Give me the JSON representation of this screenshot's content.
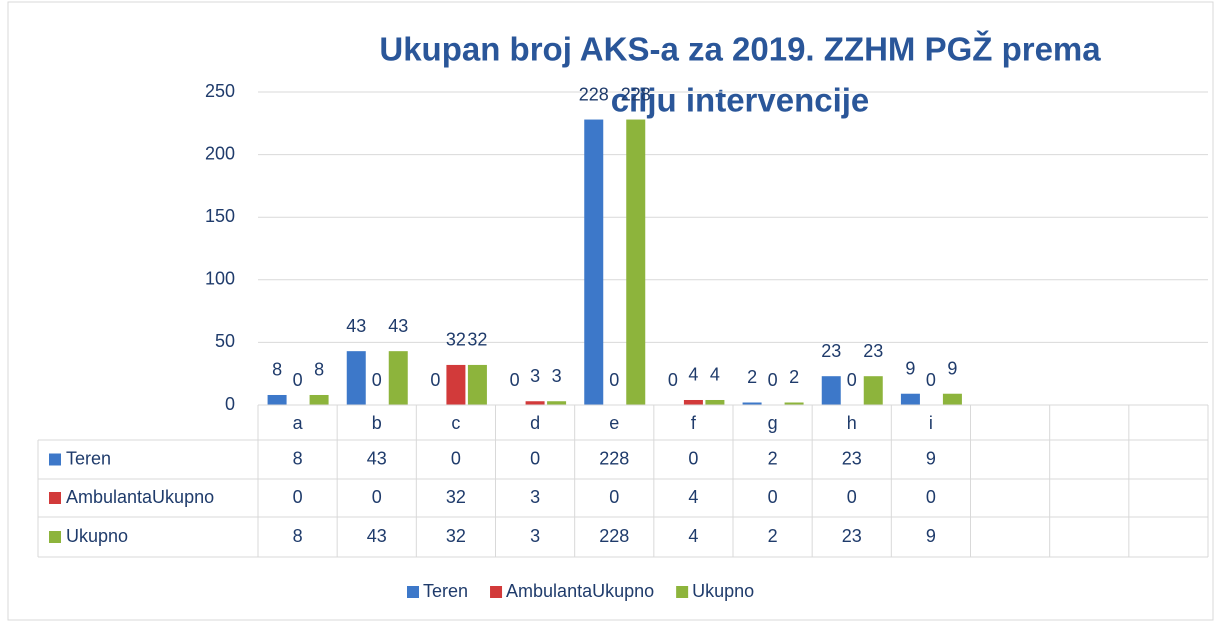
{
  "chart_data": {
    "type": "bar",
    "title": [
      "Ukupan broj AKS-a za 2019. ZZHM PGŽ prema",
      "cilju intervencije"
    ],
    "categories": [
      "a",
      "b",
      "c",
      "d",
      "e",
      "f",
      "g",
      "h",
      "i",
      null,
      null,
      null
    ],
    "series": [
      {
        "name": "Teren",
        "color": "#3d78c9",
        "values": [
          8,
          43,
          0,
          0,
          228,
          0,
          2,
          23,
          9,
          null,
          null,
          null
        ]
      },
      {
        "name": "AmbulantaUkupno",
        "color": "#d23a3a",
        "values": [
          0,
          0,
          32,
          3,
          0,
          4,
          0,
          0,
          0,
          null,
          null,
          null
        ]
      },
      {
        "name": "Ukupno",
        "color": "#8db43c",
        "values": [
          8,
          43,
          32,
          3,
          228,
          4,
          2,
          23,
          9,
          null,
          null,
          null
        ]
      }
    ],
    "ylim": [
      0,
      250
    ],
    "yticks": [
      0,
      50,
      100,
      150,
      200,
      250
    ],
    "grid": true,
    "legend": "bottom",
    "data_table": true
  }
}
